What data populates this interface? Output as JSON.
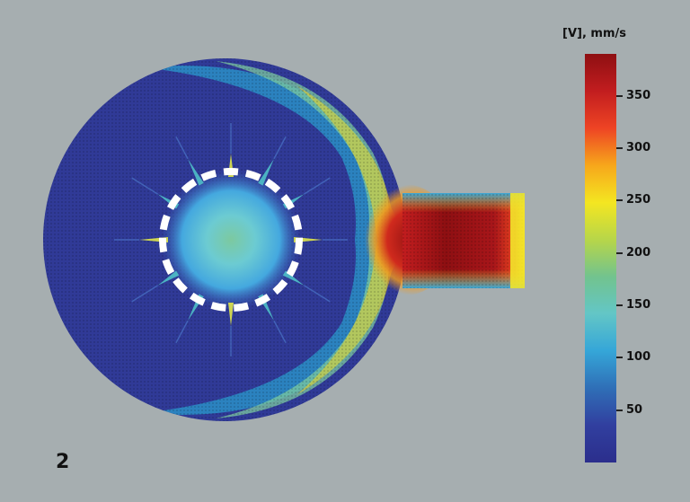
{
  "figure_number": "2",
  "colorbar": {
    "title": "[V], mm/s",
    "min": 0,
    "max": 390,
    "ticks": [
      "350",
      "300",
      "250",
      "200",
      "150",
      "100",
      "50"
    ],
    "tick_values": [
      350,
      300,
      250,
      200,
      150,
      100,
      50
    ],
    "colors": [
      "#2b2e8c",
      "#313f9f",
      "#2f6fb7",
      "#35a6d8",
      "#63c6c6",
      "#72c38e",
      "#b7d649",
      "#f4e621",
      "#f7a71b",
      "#ee4424",
      "#c21d1f",
      "#8e0f12"
    ]
  },
  "colors": {
    "background": "#a6aeb0",
    "low_velocity": "#303a97",
    "high_velocity": "#8e0f12",
    "ring": "#ffffff"
  }
}
